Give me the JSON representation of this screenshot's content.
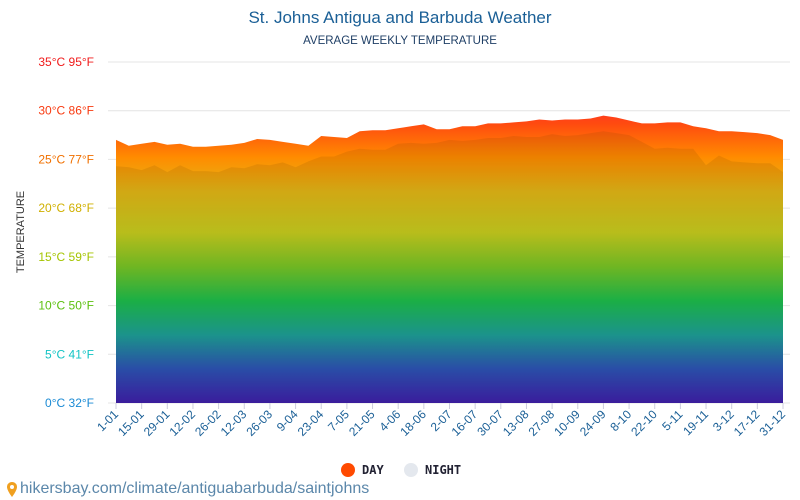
{
  "title": "St. Johns Antigua and Barbuda Weather",
  "subtitle": "AVERAGE WEEKLY TEMPERATURE",
  "source": "hikersbay.com/climate/antiguabarbuda/saintjohns",
  "chart_data": {
    "type": "area",
    "ylabel": "TEMPERATURE",
    "ylim": [
      0,
      35
    ],
    "grid": true,
    "legend_position": "bottom",
    "yticks": [
      {
        "value": 0,
        "label": "0°C 32°F",
        "color": "#1a8ad4"
      },
      {
        "value": 5,
        "label": "5°C 41°F",
        "color": "#12c4c4"
      },
      {
        "value": 10,
        "label": "10°C 50°F",
        "color": "#5cc010"
      },
      {
        "value": 15,
        "label": "15°C 59°F",
        "color": "#a4c400"
      },
      {
        "value": 20,
        "label": "20°C 68°F",
        "color": "#d0b000"
      },
      {
        "value": 25,
        "label": "25°C 77°F",
        "color": "#f07000"
      },
      {
        "value": 30,
        "label": "30°C 86°F",
        "color": "#f83a10"
      },
      {
        "value": 35,
        "label": "35°C 95°F",
        "color": "#f01a1a"
      }
    ],
    "xticks": [
      "1-01",
      "15-01",
      "29-01",
      "12-02",
      "26-02",
      "12-03",
      "26-03",
      "9-04",
      "23-04",
      "7-05",
      "21-05",
      "4-06",
      "18-06",
      "2-07",
      "16-07",
      "30-07",
      "13-08",
      "27-08",
      "10-09",
      "24-09",
      "8-10",
      "22-10",
      "5-11",
      "19-11",
      "3-12",
      "17-12",
      "31-12"
    ],
    "series": [
      {
        "name": "DAY",
        "color": "#ff4a00",
        "values": [
          27.0,
          26.4,
          26.6,
          26.8,
          26.5,
          26.6,
          26.3,
          26.3,
          26.4,
          26.5,
          26.7,
          27.1,
          27.0,
          26.8,
          26.6,
          26.4,
          27.4,
          27.3,
          27.2,
          27.9,
          28.0,
          28.0,
          28.2,
          28.4,
          28.6,
          28.1,
          28.1,
          28.4,
          28.4,
          28.7,
          28.7,
          28.8,
          28.9,
          29.1,
          29.0,
          29.1,
          29.1,
          29.2,
          29.5,
          29.3,
          29.0,
          28.7,
          28.7,
          28.8,
          28.8,
          28.4,
          28.2,
          27.9,
          27.9,
          27.8,
          27.7,
          27.5,
          27.0
        ]
      },
      {
        "name": "NIGHT",
        "color": "#e4e8ee",
        "values": [
          24.3,
          24.2,
          23.9,
          24.4,
          23.7,
          24.4,
          23.8,
          23.8,
          23.7,
          24.2,
          24.1,
          24.5,
          24.4,
          24.7,
          24.2,
          24.8,
          25.3,
          25.3,
          25.8,
          26.1,
          26.0,
          26.0,
          26.6,
          26.7,
          26.6,
          26.7,
          27.0,
          26.9,
          27.0,
          27.2,
          27.2,
          27.4,
          27.3,
          27.3,
          27.6,
          27.4,
          27.5,
          27.7,
          27.9,
          27.7,
          27.5,
          26.8,
          26.1,
          26.2,
          26.1,
          26.1,
          24.4,
          25.4,
          24.8,
          24.7,
          24.6,
          24.6,
          23.7
        ]
      }
    ]
  }
}
